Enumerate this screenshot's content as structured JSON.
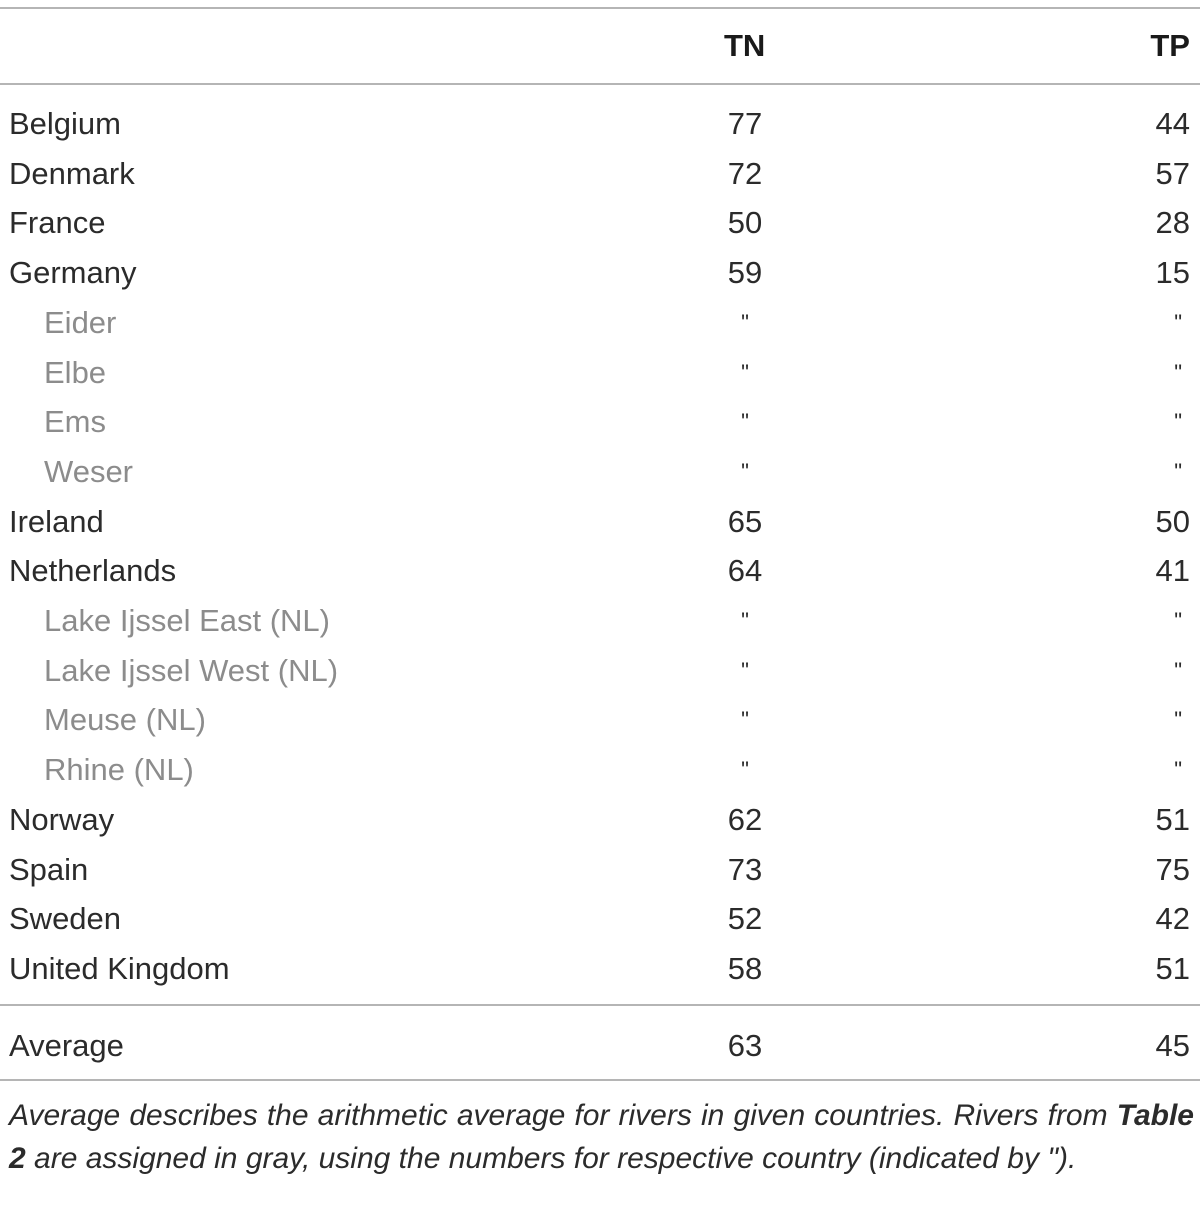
{
  "table": {
    "headers": {
      "tn": "TN",
      "tp": "TP"
    },
    "rows": [
      {
        "label": "Belgium",
        "tn": "77",
        "tp": "44",
        "sub": false
      },
      {
        "label": "Denmark",
        "tn": "72",
        "tp": "57",
        "sub": false
      },
      {
        "label": "France",
        "tn": "50",
        "tp": "28",
        "sub": false
      },
      {
        "label": "Germany",
        "tn": "59",
        "tp": "15",
        "sub": false
      },
      {
        "label": "Eider",
        "tn": "\"",
        "tp": "\"",
        "sub": true
      },
      {
        "label": "Elbe",
        "tn": "\"",
        "tp": "\"",
        "sub": true
      },
      {
        "label": "Ems",
        "tn": "\"",
        "tp": "\"",
        "sub": true
      },
      {
        "label": "Weser",
        "tn": "\"",
        "tp": "\"",
        "sub": true
      },
      {
        "label": "Ireland",
        "tn": "65",
        "tp": "50",
        "sub": false
      },
      {
        "label": "Netherlands",
        "tn": "64",
        "tp": "41",
        "sub": false
      },
      {
        "label": "Lake Ijssel East (NL)",
        "tn": "\"",
        "tp": "\"",
        "sub": true
      },
      {
        "label": "Lake Ijssel West (NL)",
        "tn": "\"",
        "tp": "\"",
        "sub": true
      },
      {
        "label": "Meuse (NL)",
        "tn": "\"",
        "tp": "\"",
        "sub": true
      },
      {
        "label": "Rhine (NL)",
        "tn": "\"",
        "tp": "\"",
        "sub": true
      },
      {
        "label": "Norway",
        "tn": "62",
        "tp": "51",
        "sub": false
      },
      {
        "label": "Spain",
        "tn": "73",
        "tp": "75",
        "sub": false
      },
      {
        "label": "Sweden",
        "tn": "52",
        "tp": "42",
        "sub": false
      },
      {
        "label": "United Kingdom",
        "tn": "58",
        "tp": "51",
        "sub": false
      }
    ],
    "average": {
      "label": "Average",
      "tn": "63",
      "tp": "45"
    }
  },
  "footnote": {
    "part1": "Average describes the arithmetic average for rivers in given countries. Rivers from ",
    "table_ref": "Table 2",
    "part2": " are assigned in gray, using the numbers for respective country (indicated by \")."
  },
  "colors": {
    "text": "#2b2b2b",
    "sub_label": "#8c8c8c",
    "rule": "#b5b5b5"
  }
}
